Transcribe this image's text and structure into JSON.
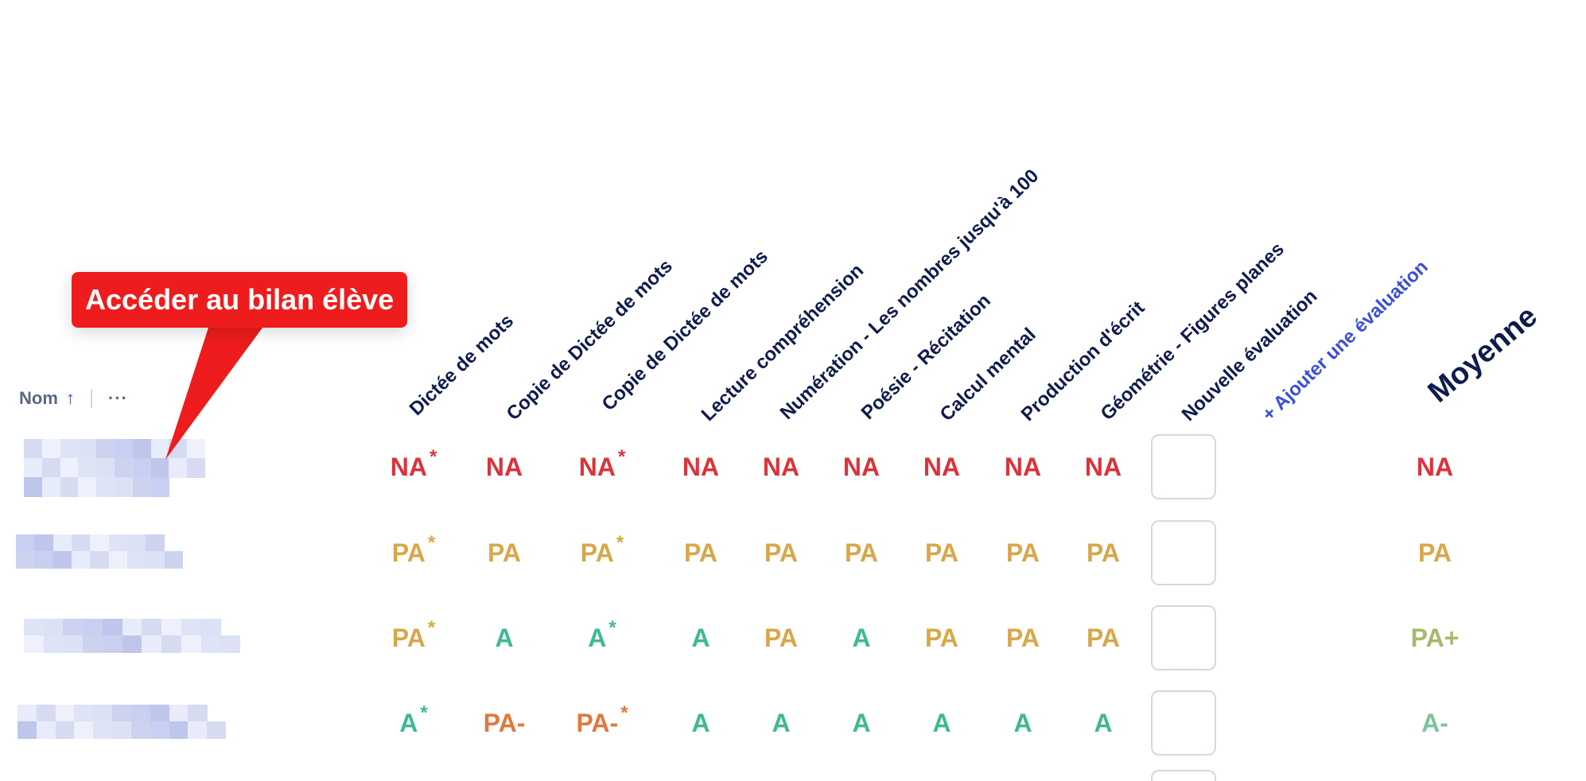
{
  "table": {
    "name_header": {
      "label": "Nom",
      "sort_icon": "↑",
      "more_icon": "···"
    },
    "columns": [
      "Dictée de mots",
      "Copie de Dictée de mots",
      "Copie de Dictée de mots",
      "Lecture compréhension",
      "Numération - Les nombres jusqu'à 100",
      "Poésie - Récitation",
      "Calcul mental",
      "Production d'écrit",
      "Géométrie - Figures planes",
      "Nouvelle évaluation"
    ],
    "add_column_label": "+ Ajouter une évaluation",
    "average_label": "Moyenne",
    "rows": [
      {
        "grades": [
          {
            "v": "NA",
            "star": "*",
            "c": "NA"
          },
          {
            "v": "NA",
            "star": "",
            "c": "NA"
          },
          {
            "v": "NA",
            "star": "*",
            "c": "NA"
          },
          {
            "v": "NA",
            "star": "",
            "c": "NA"
          },
          {
            "v": "NA",
            "star": "",
            "c": "NA"
          },
          {
            "v": "NA",
            "star": "",
            "c": "NA"
          },
          {
            "v": "NA",
            "star": "",
            "c": "NA"
          },
          {
            "v": "NA",
            "star": "",
            "c": "NA"
          },
          {
            "v": "NA",
            "star": "",
            "c": "NA"
          }
        ],
        "average": {
          "v": "NA",
          "c": "NA"
        }
      },
      {
        "grades": [
          {
            "v": "PA",
            "star": "*",
            "c": "PA"
          },
          {
            "v": "PA",
            "star": "",
            "c": "PA"
          },
          {
            "v": "PA",
            "star": "*",
            "c": "PA"
          },
          {
            "v": "PA",
            "star": "",
            "c": "PA"
          },
          {
            "v": "PA",
            "star": "",
            "c": "PA"
          },
          {
            "v": "PA",
            "star": "",
            "c": "PA"
          },
          {
            "v": "PA",
            "star": "",
            "c": "PA"
          },
          {
            "v": "PA",
            "star": "",
            "c": "PA"
          },
          {
            "v": "PA",
            "star": "",
            "c": "PA"
          }
        ],
        "average": {
          "v": "PA",
          "c": "PA"
        }
      },
      {
        "grades": [
          {
            "v": "PA",
            "star": "*",
            "c": "PA"
          },
          {
            "v": "A",
            "star": "",
            "c": "A"
          },
          {
            "v": "A",
            "star": "*",
            "c": "A"
          },
          {
            "v": "A",
            "star": "",
            "c": "A"
          },
          {
            "v": "PA",
            "star": "",
            "c": "PA"
          },
          {
            "v": "A",
            "star": "",
            "c": "A"
          },
          {
            "v": "PA",
            "star": "",
            "c": "PA"
          },
          {
            "v": "PA",
            "star": "",
            "c": "PA"
          },
          {
            "v": "PA",
            "star": "",
            "c": "PA"
          }
        ],
        "average": {
          "v": "PA+",
          "c": "PAp"
        }
      },
      {
        "grades": [
          {
            "v": "A",
            "star": "*",
            "c": "A"
          },
          {
            "v": "PA-",
            "star": "",
            "c": "PAm"
          },
          {
            "v": "PA-",
            "star": "*",
            "c": "PAm"
          },
          {
            "v": "A",
            "star": "",
            "c": "A"
          },
          {
            "v": "A",
            "star": "",
            "c": "A"
          },
          {
            "v": "A",
            "star": "",
            "c": "A"
          },
          {
            "v": "A",
            "star": "",
            "c": "A"
          },
          {
            "v": "A",
            "star": "",
            "c": "A"
          },
          {
            "v": "A",
            "star": "",
            "c": "A"
          }
        ],
        "average": {
          "v": "A-",
          "c": "Am"
        }
      }
    ]
  },
  "tooltip": {
    "text": "Accéder au bilan élève"
  },
  "colors": {
    "NA": "#d9343b",
    "PA": "#d8a749",
    "A": "#3fb896",
    "PA-": "#e0793c",
    "PA+": "#a6b96b",
    "A-": "#7cc49b",
    "tooltip": "#ee1c1c",
    "header": "#0f1b4c",
    "accent": "#3b4fd8"
  }
}
